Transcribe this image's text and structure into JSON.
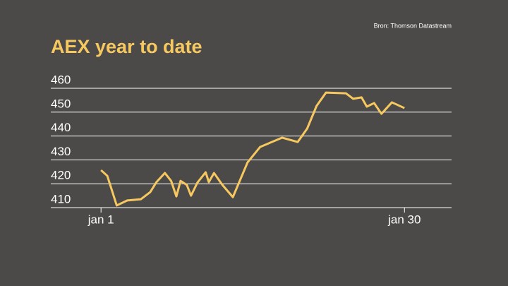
{
  "chart_data": {
    "type": "line",
    "title": "AEX year to date",
    "source": "Bron: Thomson Datastream",
    "x": [
      1,
      1.6,
      2.5,
      3.5,
      4.8,
      5.7,
      6.3,
      7.1,
      7.7,
      8.2,
      8.6,
      9.2,
      9.6,
      10.2,
      11.0,
      11.3,
      11.8,
      12.6,
      13.6,
      15.0,
      16.2,
      18.3,
      19.8,
      20.7,
      21.6,
      22.5,
      24.4,
      25.1,
      25.9,
      26.4,
      27.1,
      27.8,
      28.8,
      30
    ],
    "series": [
      {
        "color": "#f6c85f",
        "values": [
          425.7,
          423.3,
          410.9,
          413,
          413.5,
          416.5,
          420.7,
          424.5,
          421.2,
          414.7,
          421.2,
          419.5,
          415,
          420.4,
          424.8,
          420.7,
          424.5,
          419.5,
          414.4,
          428.9,
          435.4,
          439.3,
          437.5,
          443.1,
          452.6,
          458.2,
          457.9,
          455.6,
          456.2,
          452.3,
          453.8,
          449.3,
          454.1,
          451.7
        ]
      }
    ],
    "xlim": [
      -3.8,
      34.5
    ],
    "xticks": [
      {
        "value": 1,
        "label": "jan 1"
      },
      {
        "value": 30,
        "label": "jan 30"
      }
    ],
    "ylim": [
      410,
      460
    ],
    "yticks": [
      410,
      420,
      430,
      440,
      450,
      460
    ],
    "grid": true
  }
}
